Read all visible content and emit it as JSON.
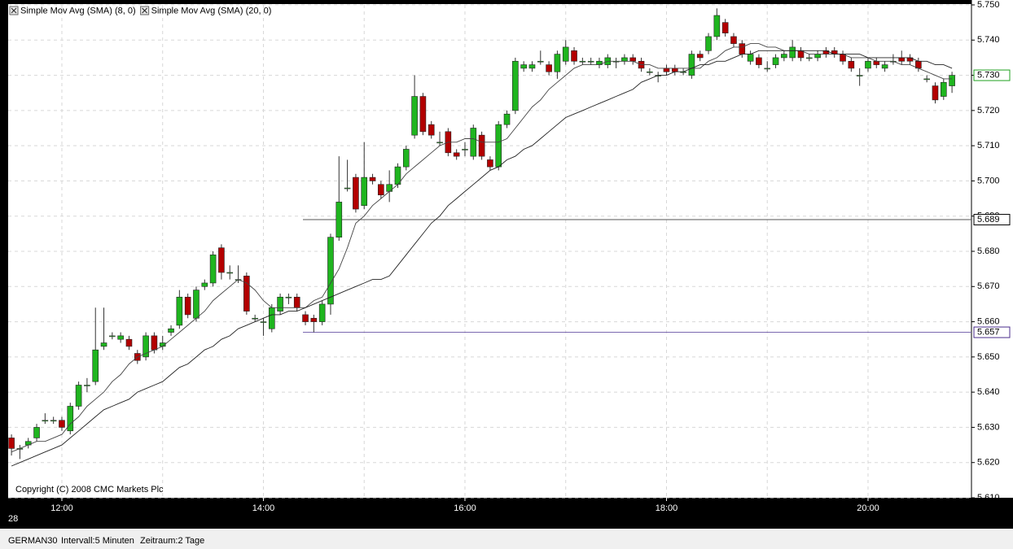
{
  "chart_data": {
    "type": "candlestick",
    "categories": [
      null,
      null,
      null,
      null,
      null,
      null,
      "12:00",
      null,
      null,
      null,
      null,
      null,
      null,
      null,
      null,
      null,
      null,
      null,
      null,
      null,
      null,
      null,
      null,
      null,
      null,
      null,
      null,
      null,
      null,
      null,
      "14:00",
      null,
      null,
      null,
      null,
      null,
      null,
      null,
      null,
      null,
      null,
      null,
      null,
      null,
      null,
      null,
      null,
      null,
      null,
      null,
      null,
      null,
      null,
      null,
      "16:00",
      null,
      null,
      null,
      null,
      null,
      null,
      null,
      null,
      null,
      null,
      null,
      null,
      null,
      null,
      null,
      null,
      null,
      null,
      null,
      null,
      null,
      null,
      null,
      "18:00",
      null,
      null,
      null,
      null,
      null,
      null,
      null,
      null,
      null,
      null,
      null,
      null,
      null,
      null,
      null,
      null,
      null,
      null,
      null,
      null,
      null,
      null,
      null,
      "20:00",
      null,
      null,
      null,
      null,
      null,
      null,
      null,
      null,
      null,
      null
    ],
    "open": [
      5.627,
      5.624,
      5.625,
      5.627,
      5.632,
      5.632,
      5.632,
      5.629,
      5.636,
      5.642,
      5.643,
      5.653,
      5.656,
      5.655,
      5.655,
      5.651,
      5.65,
      5.656,
      5.653,
      5.657,
      5.659,
      5.667,
      5.661,
      5.67,
      5.671,
      5.681,
      5.674,
      5.672,
      5.673,
      5.661,
      5.66,
      5.658,
      5.663,
      5.667,
      5.667,
      5.662,
      5.661,
      5.66,
      5.665,
      5.684,
      5.698,
      5.701,
      5.693,
      5.701,
      5.699,
      5.697,
      5.699,
      5.704,
      5.713,
      5.724,
      5.716,
      5.711,
      5.714,
      5.708,
      5.709,
      5.707,
      5.713,
      5.706,
      5.704,
      5.716,
      5.72,
      5.732,
      5.732,
      5.734,
      5.733,
      5.731,
      5.734,
      5.737,
      5.734,
      5.734,
      5.733,
      5.733,
      5.734,
      5.734,
      5.735,
      5.734,
      5.731,
      5.73,
      5.732,
      5.732,
      5.731,
      5.73,
      5.736,
      5.737,
      5.741,
      5.745,
      5.741,
      5.739,
      5.734,
      5.735,
      5.732,
      5.733,
      5.735,
      5.735,
      5.737,
      5.735,
      5.735,
      5.737,
      5.737,
      5.736,
      5.734,
      5.73,
      5.732,
      5.734,
      5.732,
      5.734,
      5.735,
      5.735,
      5.734,
      5.729,
      5.727,
      5.724,
      5.727
    ],
    "high": [
      5.628,
      5.625,
      5.627,
      5.631,
      5.634,
      5.633,
      5.633,
      5.637,
      5.643,
      5.644,
      5.664,
      5.664,
      5.657,
      5.657,
      5.656,
      5.652,
      5.657,
      5.657,
      5.656,
      5.659,
      5.669,
      5.668,
      5.67,
      5.672,
      5.68,
      5.682,
      5.676,
      5.676,
      5.674,
      5.662,
      5.661,
      5.665,
      5.668,
      5.668,
      5.668,
      5.663,
      5.662,
      5.666,
      5.685,
      5.707,
      5.706,
      5.702,
      5.711,
      5.702,
      5.7,
      5.703,
      5.705,
      5.71,
      5.73,
      5.725,
      5.717,
      5.714,
      5.715,
      5.709,
      5.711,
      5.716,
      5.714,
      5.707,
      5.717,
      5.72,
      5.735,
      5.734,
      5.734,
      5.737,
      5.734,
      5.737,
      5.74,
      5.738,
      5.735,
      5.735,
      5.735,
      5.736,
      5.735,
      5.736,
      5.736,
      5.735,
      5.732,
      5.731,
      5.733,
      5.733,
      5.732,
      5.737,
      5.737,
      5.742,
      5.749,
      5.746,
      5.742,
      5.74,
      5.737,
      5.736,
      5.734,
      5.736,
      5.737,
      5.74,
      5.738,
      5.736,
      5.737,
      5.738,
      5.738,
      5.737,
      5.735,
      5.732,
      5.735,
      5.735,
      5.734,
      5.736,
      5.737,
      5.736,
      5.735,
      5.73,
      5.728,
      5.729,
      5.731
    ],
    "low": [
      5.622,
      5.621,
      5.624,
      5.626,
      5.631,
      5.631,
      5.629,
      5.628,
      5.635,
      5.64,
      5.642,
      5.652,
      5.655,
      5.654,
      5.652,
      5.648,
      5.649,
      5.651,
      5.652,
      5.656,
      5.658,
      5.661,
      5.66,
      5.669,
      5.67,
      5.672,
      5.672,
      5.671,
      5.662,
      5.66,
      5.656,
      5.657,
      5.662,
      5.665,
      5.663,
      5.659,
      5.657,
      5.659,
      5.662,
      5.683,
      5.697,
      5.691,
      5.692,
      5.699,
      5.695,
      5.694,
      5.698,
      5.703,
      5.712,
      5.713,
      5.712,
      5.71,
      5.707,
      5.706,
      5.707,
      5.706,
      5.706,
      5.703,
      5.703,
      5.715,
      5.719,
      5.731,
      5.731,
      5.733,
      5.73,
      5.729,
      5.733,
      5.733,
      5.733,
      5.733,
      5.732,
      5.732,
      5.732,
      5.733,
      5.733,
      5.731,
      5.73,
      5.728,
      5.73,
      5.73,
      5.73,
      5.729,
      5.734,
      5.736,
      5.74,
      5.741,
      5.738,
      5.735,
      5.733,
      5.732,
      5.731,
      5.732,
      5.734,
      5.734,
      5.734,
      5.734,
      5.734,
      5.735,
      5.735,
      5.733,
      5.731,
      5.727,
      5.731,
      5.732,
      5.731,
      5.733,
      5.733,
      5.733,
      5.731,
      5.728,
      5.722,
      5.723,
      5.725
    ],
    "close": [
      5.624,
      5.624,
      5.626,
      5.63,
      5.632,
      5.632,
      5.63,
      5.636,
      5.642,
      5.642,
      5.652,
      5.654,
      5.656,
      5.656,
      5.653,
      5.649,
      5.656,
      5.652,
      5.654,
      5.658,
      5.667,
      5.662,
      5.669,
      5.671,
      5.679,
      5.674,
      5.674,
      5.672,
      5.663,
      5.661,
      5.66,
      5.664,
      5.667,
      5.667,
      5.664,
      5.66,
      5.66,
      5.665,
      5.684,
      5.694,
      5.698,
      5.692,
      5.701,
      5.7,
      5.696,
      5.699,
      5.704,
      5.709,
      5.724,
      5.714,
      5.713,
      5.711,
      5.708,
      5.707,
      5.709,
      5.715,
      5.707,
      5.704,
      5.716,
      5.719,
      5.734,
      5.733,
      5.733,
      5.734,
      5.731,
      5.736,
      5.738,
      5.734,
      5.734,
      5.734,
      5.734,
      5.735,
      5.734,
      5.735,
      5.734,
      5.732,
      5.731,
      5.73,
      5.731,
      5.731,
      5.731,
      5.736,
      5.735,
      5.741,
      5.747,
      5.742,
      5.739,
      5.736,
      5.736,
      5.733,
      5.732,
      5.735,
      5.736,
      5.738,
      5.735,
      5.735,
      5.736,
      5.736,
      5.736,
      5.734,
      5.732,
      5.73,
      5.734,
      5.733,
      5.733,
      5.734,
      5.734,
      5.734,
      5.732,
      5.729,
      5.723,
      5.728,
      5.73
    ],
    "up_color": "#1fb51f",
    "down_color": "#b30000",
    "overlays": [
      {
        "name": "Simple Mov Avg (SMA) (8, 0)",
        "color": "#444444",
        "values": [
          5.623,
          5.624,
          5.625,
          5.626,
          5.626,
          5.627,
          5.628,
          5.631,
          5.633,
          5.636,
          5.638,
          5.64,
          5.643,
          5.645,
          5.648,
          5.65,
          5.651,
          5.652,
          5.653,
          5.655,
          5.657,
          5.659,
          5.661,
          5.663,
          5.666,
          5.668,
          5.67,
          5.672,
          5.671,
          5.669,
          5.666,
          5.664,
          5.664,
          5.664,
          5.664,
          5.664,
          5.666,
          5.667,
          5.671,
          5.675,
          5.681,
          5.688,
          5.69,
          5.693,
          5.695,
          5.697,
          5.699,
          5.702,
          5.704,
          5.706,
          5.708,
          5.71,
          5.711,
          5.711,
          5.712,
          5.712,
          5.711,
          5.711,
          5.711,
          5.712,
          5.715,
          5.718,
          5.721,
          5.723,
          5.726,
          5.728,
          5.73,
          5.732,
          5.733,
          5.733,
          5.733,
          5.734,
          5.734,
          5.734,
          5.734,
          5.733,
          5.733,
          5.732,
          5.732,
          5.732,
          5.732,
          5.732,
          5.732,
          5.734,
          5.735,
          5.737,
          5.738,
          5.738,
          5.739,
          5.739,
          5.738,
          5.738,
          5.737,
          5.737,
          5.737,
          5.736,
          5.736,
          5.736,
          5.736,
          5.736,
          5.735,
          5.735,
          5.735,
          5.734,
          5.734,
          5.734,
          5.733,
          5.733,
          5.732,
          5.731,
          5.73,
          5.729,
          5.729
        ]
      },
      {
        "name": "Simple Mov Avg (SMA) (20, 0)",
        "color": "#222222",
        "values": [
          5.619,
          5.62,
          5.621,
          5.622,
          5.623,
          5.624,
          5.625,
          5.627,
          5.629,
          5.631,
          5.633,
          5.635,
          5.636,
          5.637,
          5.638,
          5.64,
          5.641,
          5.642,
          5.643,
          5.645,
          5.647,
          5.648,
          5.65,
          5.652,
          5.653,
          5.655,
          5.656,
          5.658,
          5.659,
          5.66,
          5.661,
          5.662,
          5.662,
          5.663,
          5.663,
          5.664,
          5.665,
          5.666,
          5.667,
          5.668,
          5.669,
          5.67,
          5.671,
          5.672,
          5.672,
          5.673,
          5.676,
          5.679,
          5.682,
          5.685,
          5.688,
          5.69,
          5.693,
          5.695,
          5.697,
          5.699,
          5.701,
          5.703,
          5.704,
          5.706,
          5.707,
          5.709,
          5.71,
          5.712,
          5.714,
          5.716,
          5.718,
          5.719,
          5.72,
          5.721,
          5.722,
          5.723,
          5.724,
          5.725,
          5.726,
          5.728,
          5.729,
          5.73,
          5.73,
          5.731,
          5.731,
          5.732,
          5.733,
          5.733,
          5.734,
          5.734,
          5.735,
          5.736,
          5.736,
          5.737,
          5.737,
          5.737,
          5.737,
          5.737,
          5.737,
          5.737,
          5.737,
          5.737,
          5.736,
          5.736,
          5.736,
          5.736,
          5.735,
          5.735,
          5.735,
          5.735,
          5.735,
          5.735,
          5.734,
          5.734,
          5.733,
          5.733,
          5.732
        ]
      }
    ],
    "levels": [
      {
        "value": 5.689,
        "color": "#555555"
      },
      {
        "value": 5.657,
        "color": "#7b68b0"
      }
    ],
    "last_price": {
      "value": 5.73,
      "label": "5.730",
      "color": "#1fa01f"
    },
    "ylim": [
      5.61,
      5.75
    ],
    "yticks": [
      {
        "value": 5.61,
        "label": "5.610"
      },
      {
        "value": 5.62,
        "label": "5.620"
      },
      {
        "value": 5.63,
        "label": "5.630"
      },
      {
        "value": 5.64,
        "label": "5.640"
      },
      {
        "value": 5.65,
        "label": "5.650"
      },
      {
        "value": 5.66,
        "label": "5.660"
      },
      {
        "value": 5.67,
        "label": "5.670"
      },
      {
        "value": 5.68,
        "label": "5.680"
      },
      {
        "value": 5.69,
        "label": "5.690"
      },
      {
        "value": 5.7,
        "label": "5.700"
      },
      {
        "value": 5.71,
        "label": "5.710"
      },
      {
        "value": 5.72,
        "label": "5.720"
      },
      {
        "value": 5.73,
        "label": "5.730"
      },
      {
        "value": 5.74,
        "label": "5.740"
      },
      {
        "value": 5.75,
        "label": "5.750"
      }
    ],
    "grid": true,
    "date_label": "28",
    "copyright": "Copyright (C) 2008 CMC Markets Plc"
  },
  "footer": {
    "symbol": "GERMAN30",
    "interval": "Intervall:5 Minuten",
    "period": "Zeitraum:2 Tage"
  }
}
